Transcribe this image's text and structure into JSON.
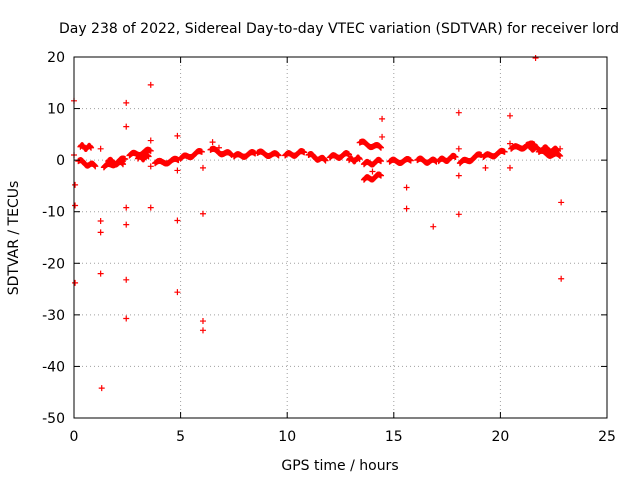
{
  "chart_data": {
    "type": "scatter",
    "title": "Day 238 of 2022, Sidereal Day-to-day VTEC variation (SDTVAR) for receiver lord",
    "xlabel": "GPS time / hours",
    "ylabel": "SDTVAR / TECUs",
    "xlim": [
      0,
      25
    ],
    "ylim": [
      -50,
      20
    ],
    "xticks": [
      0,
      5,
      10,
      15,
      20,
      25
    ],
    "yticks": [
      -50,
      -40,
      -30,
      -20,
      -10,
      0,
      10,
      20
    ],
    "xtick_labels": [
      "0",
      "5",
      "10",
      "15",
      "20",
      "25"
    ],
    "ytick_labels": [
      "-50",
      "-40",
      "-30",
      "-20",
      "-10",
      "0",
      "10",
      "20"
    ],
    "grid": true,
    "marker": "+",
    "color": "#ff0000",
    "series": [
      {
        "name": "SDTVAR",
        "points": [
          [
            0.0,
            11.5
          ],
          [
            0.0,
            1.0
          ],
          [
            0.05,
            -4.8
          ],
          [
            0.05,
            -8.8
          ],
          [
            0.05,
            -23.8
          ],
          [
            1.25,
            2.2
          ],
          [
            1.25,
            -11.8
          ],
          [
            1.25,
            -14.0
          ],
          [
            1.25,
            -22.0
          ],
          [
            1.3,
            -44.2
          ],
          [
            2.45,
            11.1
          ],
          [
            2.45,
            6.5
          ],
          [
            2.45,
            -9.2
          ],
          [
            2.45,
            -12.5
          ],
          [
            2.45,
            -23.2
          ],
          [
            2.45,
            -30.7
          ],
          [
            3.6,
            14.6
          ],
          [
            3.6,
            3.8
          ],
          [
            3.6,
            -9.2
          ],
          [
            3.6,
            -1.2
          ],
          [
            4.85,
            4.7
          ],
          [
            4.85,
            -2.0
          ],
          [
            4.85,
            -11.7
          ],
          [
            4.85,
            -25.6
          ],
          [
            6.05,
            -1.5
          ],
          [
            6.05,
            -10.4
          ],
          [
            6.05,
            -31.2
          ],
          [
            6.05,
            -33.0
          ],
          [
            6.5,
            3.5
          ],
          [
            6.8,
            2.4
          ],
          [
            14.45,
            8.0
          ],
          [
            14.45,
            4.5
          ],
          [
            14.0,
            -2.2
          ],
          [
            15.6,
            -5.3
          ],
          [
            15.6,
            -9.4
          ],
          [
            16.85,
            -12.9
          ],
          [
            18.05,
            9.2
          ],
          [
            18.05,
            2.2
          ],
          [
            18.05,
            -3.0
          ],
          [
            18.05,
            -10.5
          ],
          [
            19.3,
            -1.5
          ],
          [
            20.45,
            8.6
          ],
          [
            20.45,
            3.2
          ],
          [
            20.45,
            -1.5
          ],
          [
            21.65,
            19.8
          ],
          [
            22.8,
            2.2
          ],
          [
            22.85,
            -8.2
          ],
          [
            22.85,
            -23.0
          ]
        ],
        "arcs": [
          {
            "x": [
              0.3,
              0.8
            ],
            "y": [
              2.6,
              2.4
            ]
          },
          {
            "x": [
              0.2,
              1.0
            ],
            "y": [
              -0.2,
              -1.2
            ]
          },
          {
            "x": [
              1.4,
              2.4
            ],
            "y": [
              -1.4,
              0.2
            ]
          },
          {
            "x": [
              1.6,
              2.3
            ],
            "y": [
              -0.2,
              -0.8
            ]
          },
          {
            "x": [
              2.6,
              3.6
            ],
            "y": [
              0.9,
              1.8
            ]
          },
          {
            "x": [
              3.0,
              3.5
            ],
            "y": [
              0.3,
              0.7
            ]
          },
          {
            "x": [
              3.8,
              4.9
            ],
            "y": [
              -0.6,
              0.0
            ]
          },
          {
            "x": [
              5.0,
              6.0
            ],
            "y": [
              0.3,
              1.6
            ]
          },
          {
            "x": [
              6.4,
              7.4
            ],
            "y": [
              2.0,
              1.0
            ]
          },
          {
            "x": [
              7.5,
              8.5
            ],
            "y": [
              0.7,
              1.3
            ]
          },
          {
            "x": [
              8.6,
              9.6
            ],
            "y": [
              1.4,
              0.9
            ]
          },
          {
            "x": [
              9.9,
              10.8
            ],
            "y": [
              0.9,
              1.5
            ]
          },
          {
            "x": [
              11.0,
              11.8
            ],
            "y": [
              1.0,
              -0.1
            ]
          },
          {
            "x": [
              12.0,
              12.9
            ],
            "y": [
              0.5,
              1.1
            ]
          },
          {
            "x": [
              12.9,
              13.4
            ],
            "y": [
              0.0,
              0.2
            ]
          },
          {
            "x": [
              13.4,
              14.4
            ],
            "y": [
              3.4,
              2.4
            ]
          },
          {
            "x": [
              13.6,
              14.4
            ],
            "y": [
              -0.8,
              -0.2
            ]
          },
          {
            "x": [
              13.6,
              14.4
            ],
            "y": [
              -3.8,
              -3.0
            ]
          },
          {
            "x": [
              14.8,
              15.8
            ],
            "y": [
              -0.3,
              -0.1
            ]
          },
          {
            "x": [
              16.1,
              17.0
            ],
            "y": [
              0.0,
              -0.3
            ]
          },
          {
            "x": [
              17.1,
              17.9
            ],
            "y": [
              -0.2,
              0.6
            ]
          },
          {
            "x": [
              18.1,
              19.1
            ],
            "y": [
              -0.6,
              1.0
            ]
          },
          {
            "x": [
              19.2,
              20.2
            ],
            "y": [
              0.6,
              1.6
            ]
          },
          {
            "x": [
              20.5,
              21.6
            ],
            "y": [
              2.2,
              3.0
            ]
          },
          {
            "x": [
              21.2,
              21.8
            ],
            "y": [
              2.8,
              2.0
            ]
          },
          {
            "x": [
              21.8,
              22.8
            ],
            "y": [
              1.6,
              0.8
            ]
          },
          {
            "x": [
              22.0,
              22.7
            ],
            "y": [
              2.2,
              1.8
            ]
          }
        ]
      }
    ]
  }
}
